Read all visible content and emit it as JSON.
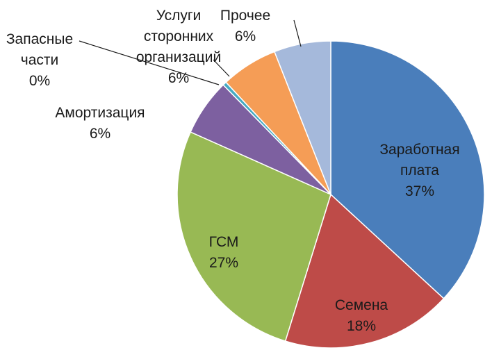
{
  "chart_data": {
    "type": "pie",
    "start_angle_deg": 0,
    "direction": "clockwise",
    "slices": [
      {
        "label_lines": [
          "Заработная",
          "плата",
          "37%"
        ],
        "value": 37,
        "color": "#4a7ebb"
      },
      {
        "label_lines": [
          "Семена",
          "18%"
        ],
        "value": 18,
        "color": "#be4b48"
      },
      {
        "label_lines": [
          "ГСМ",
          "27%"
        ],
        "value": 27,
        "color": "#98b954"
      },
      {
        "label_lines": [
          "Амортизация",
          "6%"
        ],
        "value": 6,
        "color": "#7d60a0"
      },
      {
        "label_lines": [
          "Запасные",
          "части",
          "0%"
        ],
        "value": 0.4,
        "color": "#46aac4"
      },
      {
        "label_lines": [
          "Услуги",
          "сторонних",
          "организаций",
          "6%"
        ],
        "value": 6,
        "color": "#f59d56"
      },
      {
        "label_lines": [
          "Прочее",
          "6%"
        ],
        "value": 6,
        "color": "#a5b9db"
      }
    ]
  }
}
